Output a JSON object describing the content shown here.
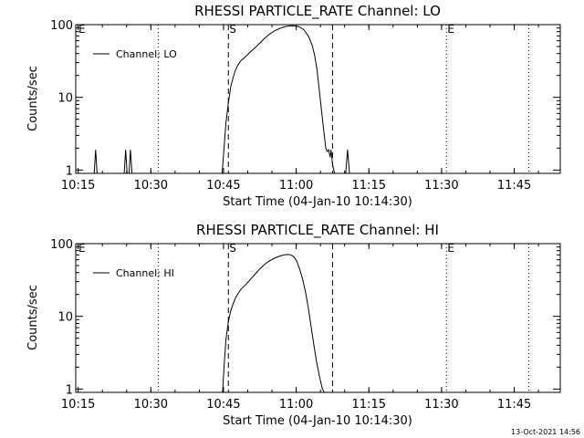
{
  "footer": {
    "timestamp": "13-Oct-2021 14:56"
  },
  "chart_data": [
    {
      "type": "line",
      "title": "RHESSI PARTICLE_RATE Channel: LO",
      "xlabel": "Start Time (04-Jan-10 10:14:30)",
      "ylabel": "Counts/sec",
      "y_scale": "log",
      "xlim_minutes": [
        0,
        100
      ],
      "ylim": [
        0.9,
        100
      ],
      "x_ticks": [
        {
          "label": "10:15",
          "t": 0.5
        },
        {
          "label": "10:30",
          "t": 15.5
        },
        {
          "label": "10:45",
          "t": 30.5
        },
        {
          "label": "11:00",
          "t": 45.5
        },
        {
          "label": "11:15",
          "t": 60.5
        },
        {
          "label": "11:30",
          "t": 75.5
        },
        {
          "label": "11:45",
          "t": 90.5
        }
      ],
      "y_ticks": [
        {
          "label": "1",
          "v": 1
        },
        {
          "label": "10",
          "v": 10
        },
        {
          "label": "100",
          "v": 100
        }
      ],
      "legend": "Channel: LO",
      "markers": [
        {
          "label": "E",
          "t": 0.4,
          "style": "none"
        },
        {
          "label": "",
          "t": 17,
          "style": "dotted"
        },
        {
          "label": "S",
          "t": 31.5,
          "style": "dashed"
        },
        {
          "label": "",
          "t": 53,
          "style": "dashed"
        },
        {
          "label": "E",
          "t": 76.5,
          "style": "dotted"
        },
        {
          "label": "",
          "t": 93.5,
          "style": "dotted"
        }
      ],
      "series": [
        {
          "name": "Channel: LO",
          "x": [
            3.8,
            4.1,
            4.4,
            10.0,
            10.3,
            10.6,
            11.0,
            11.3,
            11.6,
            30.2,
            30.6,
            31.0,
            31.5,
            32.0,
            32.5,
            33.0,
            33.5,
            34.0,
            34.6,
            35.2,
            36.0,
            37.0,
            38.0,
            39.0,
            40.0,
            41.0,
            42.0,
            43.0,
            44.0,
            45.0,
            46.0,
            47.0,
            48.0,
            48.8,
            49.3,
            49.8,
            50.3,
            50.8,
            51.3,
            51.6,
            51.9,
            52.2,
            52.5,
            52.7,
            53.0,
            53.4,
            55.7,
            56.1,
            56.5
          ],
          "y": [
            0.9,
            1.9,
            0.9,
            0.9,
            1.9,
            0.9,
            0.9,
            1.9,
            0.9,
            0.9,
            2.0,
            4.5,
            8.5,
            14.0,
            19.0,
            24.0,
            28.0,
            31.5,
            34.0,
            37.0,
            42.0,
            48.0,
            56.0,
            65.0,
            74.0,
            82.0,
            88.0,
            93.0,
            96.0,
            96.5,
            94.0,
            86.0,
            70.0,
            52.0,
            38.0,
            24.0,
            12.0,
            6.0,
            3.0,
            2.0,
            1.8,
            1.9,
            1.5,
            1.9,
            1.2,
            0.9,
            0.9,
            1.9,
            0.9
          ]
        }
      ]
    },
    {
      "type": "line",
      "title": "RHESSI PARTICLE_RATE Channel: HI",
      "xlabel": "Start Time (04-Jan-10 10:14:30)",
      "ylabel": "Counts/sec",
      "y_scale": "log",
      "xlim_minutes": [
        0,
        100
      ],
      "ylim": [
        0.9,
        100
      ],
      "x_ticks": [
        {
          "label": "10:15",
          "t": 0.5
        },
        {
          "label": "10:30",
          "t": 15.5
        },
        {
          "label": "10:45",
          "t": 30.5
        },
        {
          "label": "11:00",
          "t": 45.5
        },
        {
          "label": "11:15",
          "t": 60.5
        },
        {
          "label": "11:30",
          "t": 75.5
        },
        {
          "label": "11:45",
          "t": 90.5
        }
      ],
      "y_ticks": [
        {
          "label": "1",
          "v": 1
        },
        {
          "label": "10",
          "v": 10
        },
        {
          "label": "100",
          "v": 100
        }
      ],
      "legend": "Channel: HI",
      "markers": [
        {
          "label": "E",
          "t": 0.4,
          "style": "none"
        },
        {
          "label": "",
          "t": 17,
          "style": "dotted"
        },
        {
          "label": "S",
          "t": 31.5,
          "style": "dashed"
        },
        {
          "label": "",
          "t": 53,
          "style": "dashed"
        },
        {
          "label": "E",
          "t": 76.5,
          "style": "dotted"
        },
        {
          "label": "",
          "t": 93.5,
          "style": "dotted"
        }
      ],
      "series": [
        {
          "name": "Channel: HI",
          "x": [
            30.3,
            30.6,
            31.0,
            31.5,
            32.0,
            32.5,
            33.0,
            33.6,
            34.2,
            35.0,
            36.0,
            37.0,
            38.0,
            39.0,
            40.0,
            41.0,
            42.0,
            43.0,
            43.8,
            44.4,
            45.0,
            45.6,
            46.2,
            46.8,
            47.4,
            48.0,
            48.6,
            49.2,
            49.8,
            50.4,
            50.9,
            51.3
          ],
          "y": [
            0.9,
            2.0,
            4.8,
            8.5,
            12.0,
            15.0,
            18.0,
            21.0,
            24.0,
            27.0,
            32.0,
            38.0,
            45.0,
            52.0,
            58.0,
            63.0,
            67.0,
            70.0,
            71.0,
            70.0,
            66.0,
            58.0,
            45.0,
            33.0,
            22.0,
            13.0,
            7.0,
            3.8,
            2.2,
            1.4,
            1.0,
            0.9
          ]
        }
      ]
    }
  ]
}
